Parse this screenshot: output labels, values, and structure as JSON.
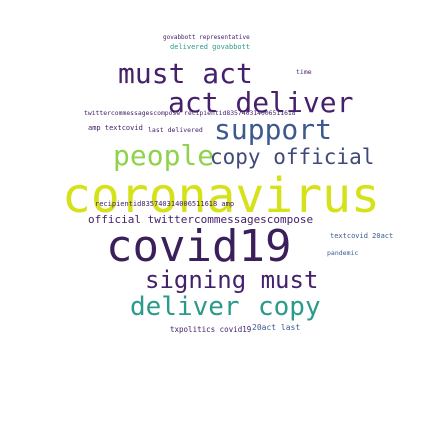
{
  "palette": {
    "yellow": "#d5e21a",
    "navy": "#3b1f5a",
    "purple": "#45206b",
    "teal": "#2a9b8a",
    "green": "#40b876",
    "lime": "#8fd24c",
    "blue": "#3d5a8e",
    "slate": "#3f4a7a"
  },
  "words": [
    {
      "text": "coronavirus",
      "color": "yellow"
    },
    {
      "text": "covid19",
      "color": "navy"
    },
    {
      "text": "must act",
      "color": "purple"
    },
    {
      "text": "act deliver",
      "color": "purple"
    },
    {
      "text": "support",
      "color": "blue"
    },
    {
      "text": "people",
      "color": "lime"
    },
    {
      "text": "copy official",
      "color": "slate"
    },
    {
      "text": "signing must",
      "color": "purple"
    },
    {
      "text": "deliver",
      "color": "teal"
    },
    {
      "text": "copy",
      "color": "teal"
    },
    {
      "text": "official twittercommessagescompose",
      "color": "purple"
    },
    {
      "text": "recipientid835740314006511618 amp",
      "color": "purple"
    },
    {
      "text": "twittercommessagescompose recipientid835740314006511618",
      "color": "purple"
    },
    {
      "text": "amp textcovid",
      "color": "purple"
    },
    {
      "text": "last delivered",
      "color": "purple"
    },
    {
      "text": "govabbott representative",
      "color": "purple"
    },
    {
      "text": "delivered govabbott",
      "color": "teal"
    },
    {
      "text": "textcovid 20act",
      "color": "blue"
    },
    {
      "text": "pandemic",
      "color": "blue"
    },
    {
      "text": "txpolitics covid19",
      "color": "purple"
    },
    {
      "text": "20act last",
      "color": "blue"
    },
    {
      "text": "time",
      "color": "purple"
    }
  ]
}
